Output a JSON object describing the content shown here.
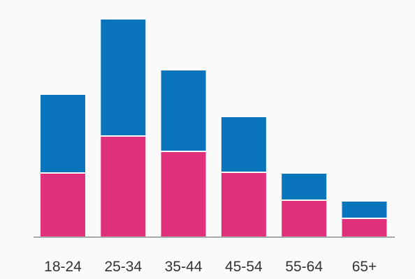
{
  "chart_data": {
    "type": "bar",
    "stacked": true,
    "categories": [
      "18-24",
      "25-34",
      "35-44",
      "45-54",
      "55-64",
      "65+"
    ],
    "series": [
      {
        "values": [
          90,
          143,
          121,
          91,
          51,
          25
        ],
        "color": "#e0307b"
      },
      {
        "values": [
          113,
          168,
          117,
          80,
          39,
          25
        ],
        "color": "#0a74bc"
      }
    ],
    "ylim": [
      0,
      315
    ],
    "grid": false,
    "legend": "none",
    "axis_color": "#a8a8a8",
    "background": "#fbfafa"
  }
}
